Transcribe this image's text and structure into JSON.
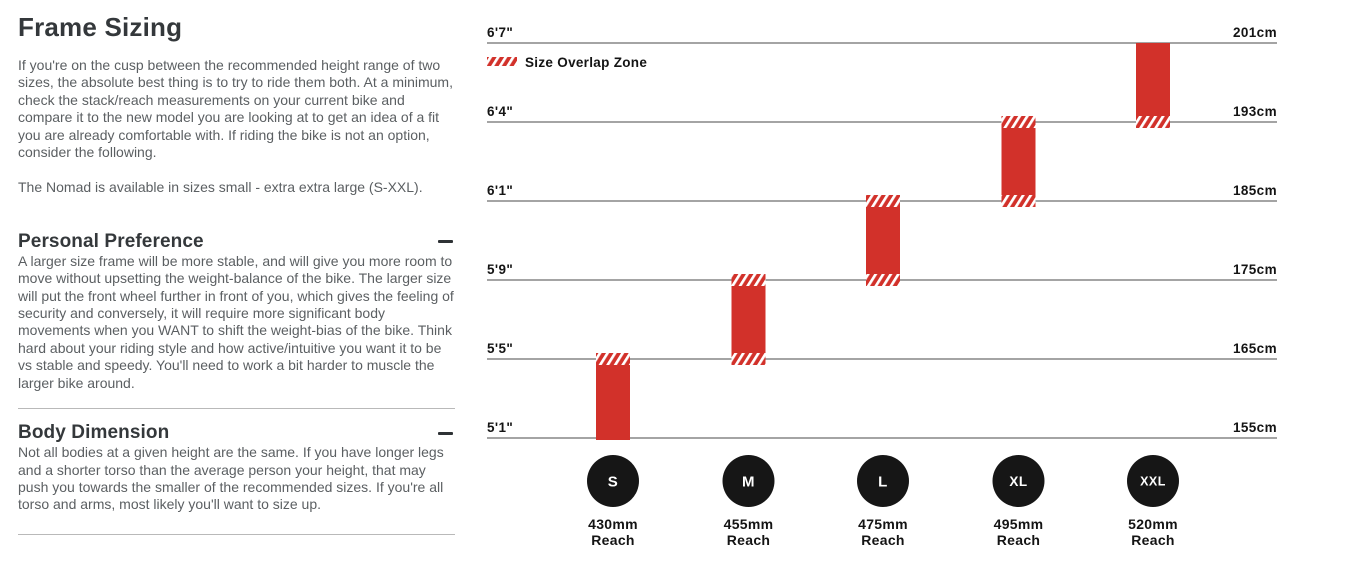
{
  "article": {
    "title": "Frame Sizing",
    "intro_p1": "If you're on the cusp between the recommended height range of two sizes, the absolute best thing is to try to ride them both. At a minimum, check the stack/reach measurements on your current bike and compare it to the new model you are looking at to get an idea of a fit you are already comfortable with. If riding the bike is not an option, consider the following.",
    "intro_p2": "The Nomad is available in sizes small - extra extra large (S-XXL).",
    "sections": [
      {
        "heading": "Personal Preference",
        "collapse_icon": "minus",
        "body": "A larger size frame will be more stable, and will give you more room to move without upsetting the weight-balance of the bike. The larger size will put the front wheel further in front of you, which gives the feeling of security and conversely, it will require more significant body movements when you WANT to shift the weight-bias of the bike. Think hard about your riding style and how active/intuitive you want it to be vs stable and speedy. You'll need to work a bit harder to muscle the larger bike around."
      },
      {
        "heading": "Body Dimension",
        "collapse_icon": "minus",
        "body": "Not all bodies at a given height are the same. If you have longer legs and a shorter torso than the average person your height, that may push you towards the smaller of the recommended sizes. If you're all torso and arms, most likely you'll want to size up."
      }
    ]
  },
  "chart_data": {
    "type": "bar",
    "subtype": "vertical-range-bars",
    "title": "",
    "legend": [
      {
        "label": "Size Overlap Zone",
        "swatch": "red-diagonal-hatch"
      }
    ],
    "y_axis": {
      "left_labels": [
        "6'7\"",
        "6'4\"",
        "6'1\"",
        "5'9\"",
        "5'5\"",
        "5'1\""
      ],
      "right_labels": [
        "201cm",
        "193cm",
        "185cm",
        "175cm",
        "165cm",
        "155cm"
      ],
      "values_cm": [
        201,
        193,
        185,
        175,
        165,
        155
      ],
      "gridlines": true
    },
    "series": [
      {
        "label": "S",
        "reach_line1": "430mm",
        "reach_line2": "Reach",
        "reach_mm": 430,
        "range_cm": [
          155,
          165
        ],
        "range_height": [
          "5'1\"",
          "5'5\""
        ],
        "top_line": 4,
        "bottom_line": 5,
        "overlap_top": true,
        "overlap_bottom": false
      },
      {
        "label": "M",
        "reach_line1": "455mm",
        "reach_line2": "Reach",
        "reach_mm": 455,
        "range_cm": [
          165,
          175
        ],
        "range_height": [
          "5'5\"",
          "5'9\""
        ],
        "top_line": 3,
        "bottom_line": 4,
        "overlap_top": true,
        "overlap_bottom": true
      },
      {
        "label": "L",
        "reach_line1": "475mm",
        "reach_line2": "Reach",
        "reach_mm": 475,
        "range_cm": [
          175,
          185
        ],
        "range_height": [
          "5'9\"",
          "6'1\""
        ],
        "top_line": 2,
        "bottom_line": 3,
        "overlap_top": true,
        "overlap_bottom": true
      },
      {
        "label": "XL",
        "reach_line1": "495mm",
        "reach_line2": "Reach",
        "reach_mm": 495,
        "range_cm": [
          185,
          193
        ],
        "range_height": [
          "6'1\"",
          "6'4\""
        ],
        "top_line": 1,
        "bottom_line": 2,
        "overlap_top": true,
        "overlap_bottom": true
      },
      {
        "label": "XXL",
        "reach_line1": "520mm",
        "reach_line2": "Reach",
        "reach_mm": 520,
        "range_cm": [
          193,
          201
        ],
        "range_height": [
          "6'4\"",
          "6'7\""
        ],
        "top_line": 0,
        "bottom_line": 1,
        "overlap_top": false,
        "overlap_bottom": true
      }
    ],
    "colors": {
      "bar": "#d2312a",
      "hatch_stripe": "#ffffff",
      "circle": "#161616",
      "gridline": "#4a4a4a",
      "text": "#141414",
      "badge_text": "#ffffff"
    }
  }
}
